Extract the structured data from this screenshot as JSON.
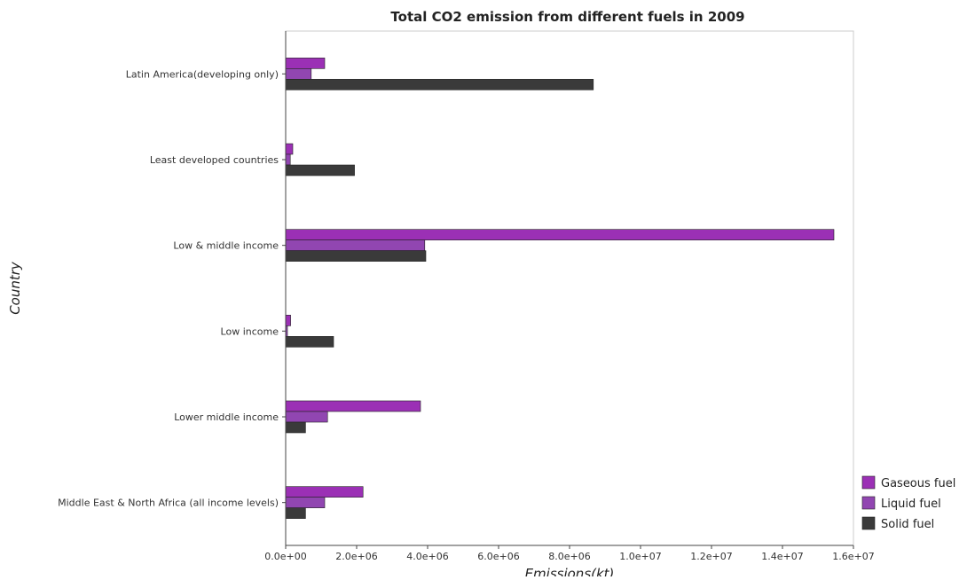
{
  "chart_data": {
    "type": "bar",
    "orientation": "horizontal",
    "title": "Total CO2 emission from different fuels in 2009",
    "xlabel": "Emissions(kt)",
    "ylabel": "Country",
    "xlim": [
      0,
      16000000
    ],
    "x_ticks": [
      "0.0e+00",
      "2.0e+06",
      "4.0e+06",
      "6.0e+06",
      "8.0e+06",
      "1.0e+07",
      "1.2e+07",
      "1.4e+07",
      "1.6e+07"
    ],
    "x_tick_values": [
      0,
      2000000,
      4000000,
      6000000,
      8000000,
      10000000,
      12000000,
      14000000,
      16000000
    ],
    "categories": [
      "Latin America(developing only)",
      "Least developed countries",
      "Low & middle income",
      "Low income",
      "Lower middle income",
      "Middle East & North Africa (all income levels)"
    ],
    "series": [
      {
        "name": "Gaseous fuel",
        "color": "#9b30b5",
        "values": [
          1100000,
          200000,
          15450000,
          140000,
          3800000,
          2180000
        ]
      },
      {
        "name": "Liquid fuel",
        "color": "#9146b1",
        "values": [
          720000,
          130000,
          3920000,
          50000,
          1180000,
          1100000
        ]
      },
      {
        "name": "Solid fuel",
        "color": "#3a3a3a",
        "values": [
          8670000,
          1940000,
          3950000,
          1350000,
          560000,
          560000
        ]
      }
    ],
    "legend_position": "bottom-right",
    "grid": false
  }
}
